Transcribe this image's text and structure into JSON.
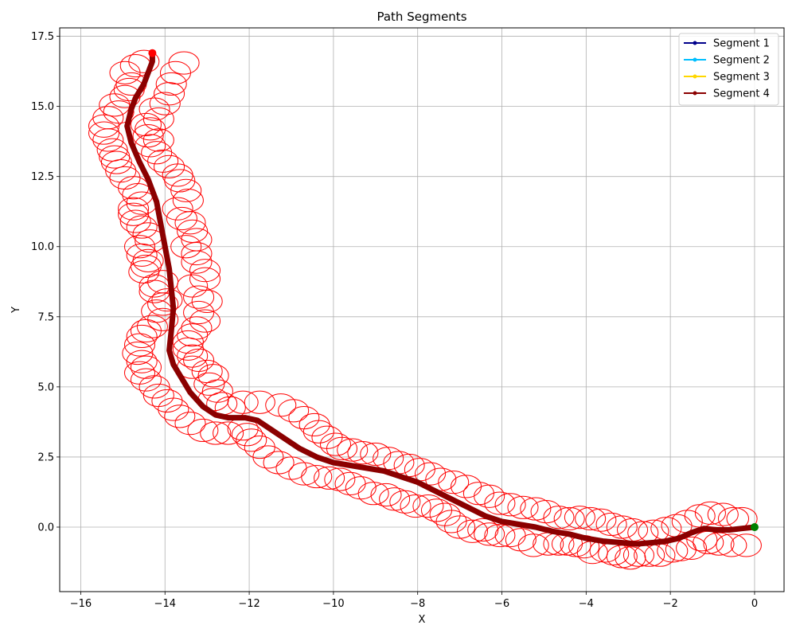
{
  "chart_data": {
    "type": "line",
    "title": "Path Segments",
    "xlabel": "X",
    "ylabel": "Y",
    "xlim": [
      -16.5,
      0.7
    ],
    "ylim": [
      -2.3,
      17.8
    ],
    "xticks": [
      -16,
      -14,
      -12,
      -10,
      -8,
      -6,
      -4,
      -2,
      0
    ],
    "yticks": [
      0.0,
      2.5,
      5.0,
      7.5,
      10.0,
      12.5,
      15.0,
      17.5
    ],
    "xtick_labels": [
      "−16",
      "−14",
      "−12",
      "−10",
      "−8",
      "−6",
      "−4",
      "−2",
      "0"
    ],
    "ytick_labels": [
      "0.0",
      "2.5",
      "5.0",
      "7.5",
      "10.0",
      "12.5",
      "15.0",
      "17.5"
    ],
    "grid": true,
    "legend_position": "top-right",
    "series": [
      {
        "name": "Segment 1",
        "color": "#00008b",
        "x": [],
        "y": []
      },
      {
        "name": "Segment 2",
        "color": "#00bfff",
        "x": [],
        "y": []
      },
      {
        "name": "Segment 3",
        "color": "#ffd700",
        "x": [],
        "y": []
      },
      {
        "name": "Segment 4",
        "color": "#8b0000",
        "x": [
          0.0,
          -0.3,
          -0.6,
          -0.9,
          -1.2,
          -1.5,
          -1.8,
          -2.1,
          -2.4,
          -2.8,
          -3.2,
          -3.6,
          -4.0,
          -4.4,
          -4.8,
          -5.2,
          -5.6,
          -6.0,
          -6.4,
          -6.8,
          -7.2,
          -7.6,
          -8.0,
          -8.4,
          -8.8,
          -9.2,
          -9.6,
          -10.0,
          -10.4,
          -10.8,
          -11.2,
          -11.5,
          -11.8,
          -12.1,
          -12.5,
          -12.8,
          -13.1,
          -13.4,
          -13.6,
          -13.8,
          -13.9,
          -13.85,
          -13.8,
          -13.85,
          -13.9,
          -14.0,
          -14.1,
          -14.2,
          -14.4,
          -14.6,
          -14.8,
          -14.9,
          -14.8,
          -14.7,
          -14.5,
          -14.4,
          -14.3,
          -14.3
        ],
        "y": [
          0.0,
          -0.05,
          -0.1,
          -0.1,
          -0.05,
          -0.2,
          -0.4,
          -0.5,
          -0.55,
          -0.6,
          -0.55,
          -0.5,
          -0.4,
          -0.25,
          -0.15,
          0.0,
          0.1,
          0.2,
          0.4,
          0.7,
          1.0,
          1.3,
          1.6,
          1.8,
          2.0,
          2.1,
          2.2,
          2.3,
          2.5,
          2.8,
          3.2,
          3.5,
          3.8,
          3.9,
          3.9,
          4.0,
          4.3,
          4.8,
          5.3,
          5.8,
          6.3,
          7.0,
          7.8,
          8.5,
          9.2,
          10.0,
          10.8,
          11.6,
          12.4,
          13.0,
          13.7,
          14.3,
          14.9,
          15.3,
          15.8,
          16.2,
          16.6,
          16.9
        ]
      }
    ],
    "start_point": {
      "x": 0.0,
      "y": 0.0,
      "color": "#008000"
    },
    "end_point": {
      "x": -14.3,
      "y": 16.9,
      "color": "#ff0000"
    },
    "obstacles": {
      "color": "#ff0000",
      "width": 0.36,
      "height": 0.4,
      "centers": [
        [
          -0.2,
          -0.65
        ],
        [
          -0.55,
          -0.65
        ],
        [
          -0.85,
          -0.6
        ],
        [
          -1.1,
          -0.55
        ],
        [
          -1.25,
          -0.45
        ],
        [
          -1.5,
          -0.75
        ],
        [
          -1.75,
          -0.8
        ],
        [
          -1.95,
          -0.85
        ],
        [
          -2.25,
          -1.0
        ],
        [
          -2.5,
          -1.0
        ],
        [
          -2.75,
          -1.0
        ],
        [
          -2.95,
          -1.1
        ],
        [
          -3.15,
          -1.05
        ],
        [
          -3.35,
          -0.95
        ],
        [
          -3.55,
          -0.85
        ],
        [
          -3.85,
          -0.9
        ],
        [
          -4.05,
          -0.7
        ],
        [
          -4.25,
          -0.65
        ],
        [
          -4.45,
          -0.6
        ],
        [
          -4.65,
          -0.6
        ],
        [
          -4.9,
          -0.6
        ],
        [
          -5.25,
          -0.65
        ],
        [
          -5.55,
          -0.45
        ],
        [
          -5.8,
          -0.3
        ],
        [
          -6.05,
          -0.3
        ],
        [
          -6.3,
          -0.25
        ],
        [
          -6.45,
          -0.1
        ],
        [
          -6.7,
          -0.15
        ],
        [
          -7.0,
          0.0
        ],
        [
          -7.2,
          0.2
        ],
        [
          -7.35,
          0.45
        ],
        [
          -7.55,
          0.6
        ],
        [
          -7.75,
          0.75
        ],
        [
          -8.05,
          0.75
        ],
        [
          -8.3,
          0.9
        ],
        [
          -8.55,
          1.0
        ],
        [
          -8.75,
          1.15
        ],
        [
          -9.05,
          1.2
        ],
        [
          -9.35,
          1.4
        ],
        [
          -9.6,
          1.55
        ],
        [
          -9.85,
          1.7
        ],
        [
          -10.1,
          1.75
        ],
        [
          -10.4,
          1.8
        ],
        [
          -10.7,
          1.9
        ],
        [
          -11.0,
          2.1
        ],
        [
          -11.3,
          2.3
        ],
        [
          -11.55,
          2.5
        ],
        [
          -11.75,
          2.85
        ],
        [
          -11.95,
          3.1
        ],
        [
          -12.05,
          3.3
        ],
        [
          -12.15,
          3.5
        ],
        [
          -12.5,
          3.35
        ],
        [
          -12.8,
          3.35
        ],
        [
          -13.1,
          3.45
        ],
        [
          -13.4,
          3.7
        ],
        [
          -13.65,
          3.95
        ],
        [
          -13.8,
          4.2
        ],
        [
          -13.95,
          4.5
        ],
        [
          -14.15,
          4.7
        ],
        [
          -14.25,
          5.0
        ],
        [
          -14.45,
          5.25
        ],
        [
          -14.6,
          5.5
        ],
        [
          -14.45,
          5.7
        ],
        [
          -14.55,
          5.9
        ],
        [
          -14.65,
          6.2
        ],
        [
          -14.6,
          6.5
        ],
        [
          -14.55,
          6.8
        ],
        [
          -14.45,
          7.0
        ],
        [
          -14.3,
          7.15
        ],
        [
          -14.05,
          7.4
        ],
        [
          -14.2,
          7.7
        ],
        [
          -14.05,
          7.95
        ],
        [
          -13.95,
          8.1
        ],
        [
          -14.25,
          8.4
        ],
        [
          -14.05,
          8.75
        ],
        [
          -14.25,
          8.6
        ],
        [
          -14.5,
          9.1
        ],
        [
          -14.45,
          9.3
        ],
        [
          -14.4,
          9.5
        ],
        [
          -14.55,
          9.7
        ],
        [
          -14.6,
          10.0
        ],
        [
          -14.35,
          10.2
        ],
        [
          -14.4,
          10.45
        ],
        [
          -14.55,
          10.7
        ],
        [
          -14.7,
          10.9
        ],
        [
          -14.75,
          11.15
        ],
        [
          -14.75,
          11.35
        ],
        [
          -14.55,
          11.55
        ],
        [
          -14.65,
          11.85
        ],
        [
          -14.75,
          12.1
        ],
        [
          -14.95,
          12.45
        ],
        [
          -15.05,
          12.7
        ],
        [
          -15.15,
          13.0
        ],
        [
          -15.2,
          13.2
        ],
        [
          -15.25,
          13.45
        ],
        [
          -15.35,
          13.8
        ],
        [
          -15.45,
          14.05
        ],
        [
          -15.45,
          14.3
        ],
        [
          -15.35,
          14.6
        ],
        [
          -15.1,
          14.8
        ],
        [
          -15.2,
          15.05
        ],
        [
          -14.95,
          15.35
        ],
        [
          -14.85,
          15.6
        ],
        [
          -14.8,
          15.8
        ],
        [
          -14.95,
          16.2
        ],
        [
          -14.7,
          16.45
        ],
        [
          -14.5,
          16.6
        ],
        [
          -13.55,
          16.55
        ],
        [
          -13.75,
          16.2
        ],
        [
          -13.85,
          15.8
        ],
        [
          -13.9,
          15.45
        ],
        [
          -14.0,
          15.1
        ],
        [
          -14.25,
          14.9
        ],
        [
          -14.15,
          14.55
        ],
        [
          -14.45,
          14.35
        ],
        [
          -14.35,
          14.2
        ],
        [
          -14.4,
          13.95
        ],
        [
          -14.15,
          13.8
        ],
        [
          -14.35,
          13.6
        ],
        [
          -14.2,
          13.35
        ],
        [
          -14.05,
          13.05
        ],
        [
          -13.9,
          12.85
        ],
        [
          -13.7,
          12.55
        ],
        [
          -13.65,
          12.35
        ],
        [
          -13.5,
          12.0
        ],
        [
          -13.45,
          11.65
        ],
        [
          -13.7,
          11.35
        ],
        [
          -13.6,
          11.0
        ],
        [
          -13.4,
          10.85
        ],
        [
          -13.35,
          10.55
        ],
        [
          -13.25,
          10.25
        ],
        [
          -13.5,
          10.0
        ],
        [
          -13.25,
          9.75
        ],
        [
          -13.25,
          9.45
        ],
        [
          -13.05,
          9.15
        ],
        [
          -13.05,
          8.85
        ],
        [
          -13.35,
          8.6
        ],
        [
          -13.2,
          8.2
        ],
        [
          -13.0,
          8.05
        ],
        [
          -13.2,
          7.65
        ],
        [
          -13.05,
          7.35
        ],
        [
          -13.25,
          7.1
        ],
        [
          -13.35,
          6.85
        ],
        [
          -13.45,
          6.6
        ],
        [
          -13.45,
          6.35
        ],
        [
          -13.35,
          6.1
        ],
        [
          -13.2,
          5.95
        ],
        [
          -13.35,
          5.7
        ],
        [
          -13.0,
          5.55
        ],
        [
          -12.85,
          5.4
        ],
        [
          -12.95,
          5.1
        ],
        [
          -12.75,
          4.85
        ],
        [
          -12.85,
          4.55
        ],
        [
          -12.65,
          4.4
        ],
        [
          -12.45,
          4.25
        ],
        [
          -12.15,
          4.45
        ],
        [
          -11.75,
          4.45
        ],
        [
          -11.25,
          4.35
        ],
        [
          -10.95,
          4.15
        ],
        [
          -10.7,
          3.9
        ],
        [
          -10.45,
          3.65
        ],
        [
          -10.35,
          3.4
        ],
        [
          -10.15,
          3.2
        ],
        [
          -9.95,
          2.95
        ],
        [
          -9.8,
          2.8
        ],
        [
          -9.55,
          2.75
        ],
        [
          -9.3,
          2.65
        ],
        [
          -9.0,
          2.6
        ],
        [
          -8.7,
          2.45
        ],
        [
          -8.45,
          2.3
        ],
        [
          -8.2,
          2.2
        ],
        [
          -7.95,
          2.05
        ],
        [
          -7.7,
          1.9
        ],
        [
          -7.45,
          1.7
        ],
        [
          -7.15,
          1.6
        ],
        [
          -6.85,
          1.45
        ],
        [
          -6.55,
          1.2
        ],
        [
          -6.3,
          1.1
        ],
        [
          -6.05,
          0.85
        ],
        [
          -5.8,
          0.8
        ],
        [
          -5.5,
          0.7
        ],
        [
          -5.2,
          0.65
        ],
        [
          -4.95,
          0.55
        ],
        [
          -4.65,
          0.35
        ],
        [
          -4.4,
          0.3
        ],
        [
          -4.15,
          0.35
        ],
        [
          -3.9,
          0.3
        ],
        [
          -3.65,
          0.25
        ],
        [
          -3.4,
          0.1
        ],
        [
          -3.15,
          0.0
        ],
        [
          -2.9,
          -0.1
        ],
        [
          -2.65,
          -0.2
        ],
        [
          -2.4,
          -0.15
        ],
        [
          -2.1,
          -0.05
        ],
        [
          -1.85,
          0.05
        ],
        [
          -1.6,
          0.2
        ],
        [
          -1.3,
          0.4
        ],
        [
          -1.05,
          0.5
        ],
        [
          -0.75,
          0.45
        ],
        [
          -0.5,
          0.3
        ],
        [
          -0.3,
          0.3
        ]
      ]
    }
  }
}
